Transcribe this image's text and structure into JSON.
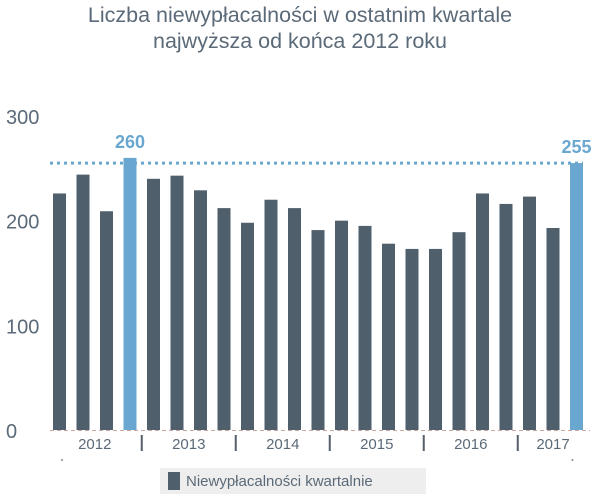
{
  "chart_data": {
    "type": "bar",
    "title": "Liczba niewypłacalności w ostatnim kwartale",
    "subtitle": "najwyższa od końca 2012 roku",
    "xlabel": "",
    "ylabel": "",
    "ylim": [
      0,
      300
    ],
    "yticks": [
      0,
      100,
      200,
      300
    ],
    "year_labels": [
      "2012",
      "2013",
      "2014",
      "2015",
      "2016",
      "2017"
    ],
    "values": [
      226,
      244,
      209,
      260,
      240,
      243,
      229,
      212,
      198,
      220,
      212,
      191,
      200,
      195,
      178,
      173,
      173,
      189,
      226,
      216,
      223,
      193,
      255
    ],
    "highlight_indices": [
      3,
      22
    ],
    "data_labels": [
      {
        "index": 3,
        "text": "260"
      },
      {
        "index": 22,
        "text": "255"
      }
    ],
    "reference_line": {
      "value": 255,
      "style": "dotted"
    },
    "series": [
      {
        "name": "Niewypłacalności kwartalnie",
        "values": [
          226,
          244,
          209,
          260,
          240,
          243,
          229,
          212,
          198,
          220,
          212,
          191,
          200,
          195,
          178,
          173,
          173,
          189,
          226,
          216,
          223,
          193,
          255
        ]
      }
    ],
    "grid": false,
    "legend_position": "bottom",
    "colors": {
      "bar": "#4f5f6c",
      "highlight": "#6aa7d0",
      "text": "#5b6a78",
      "axis": "#888888"
    }
  }
}
